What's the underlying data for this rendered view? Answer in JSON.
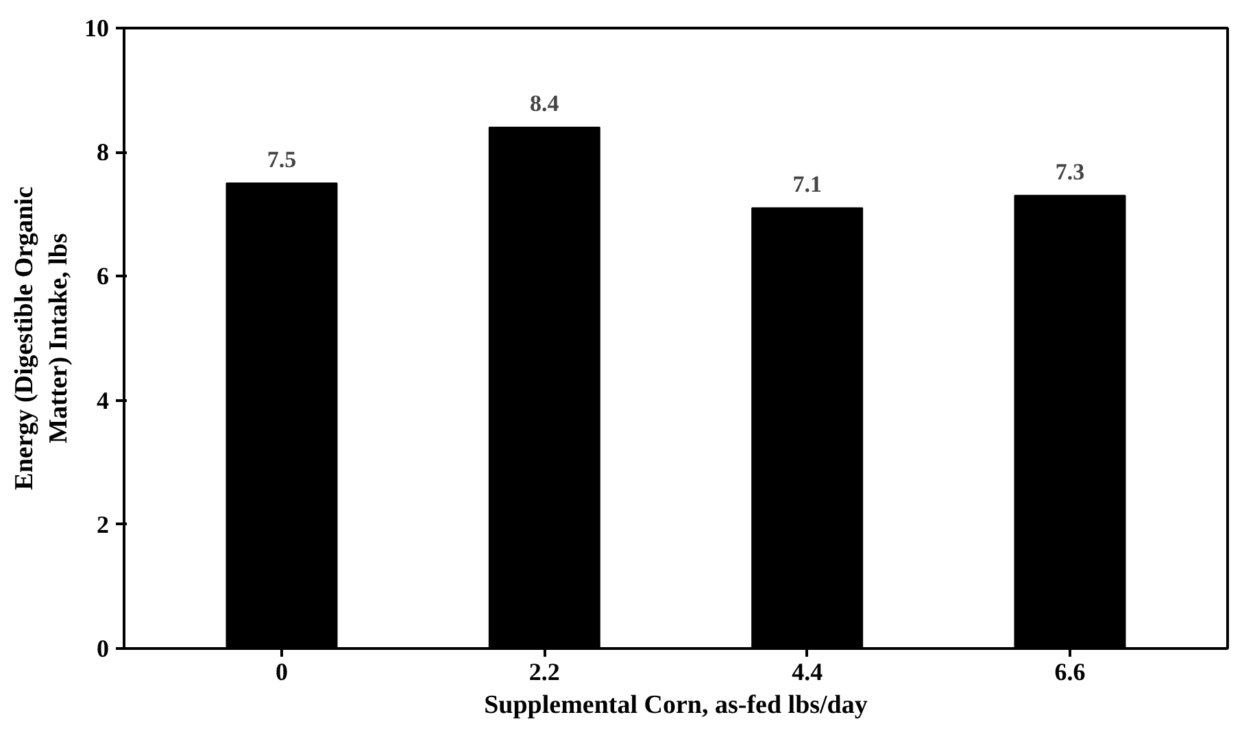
{
  "chart_data": {
    "type": "bar",
    "xlabel": "Supplemental Corn, as-fed lbs/day",
    "ylabel": "Energy (Digestible Organic\nMatter) Intake, lbs",
    "categories": [
      "0",
      "2.2",
      "4.4",
      "6.6"
    ],
    "values": [
      7.5,
      8.4,
      7.1,
      7.3
    ],
    "color": "#000000",
    "data_labels": true,
    "ylim": [
      0,
      10
    ],
    "yticks": [
      0,
      2,
      4,
      6,
      8,
      10
    ],
    "grid": false
  }
}
